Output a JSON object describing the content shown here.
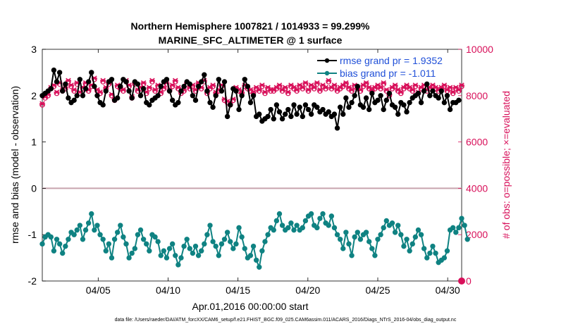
{
  "chart_data": {
    "type": "line",
    "title": "Northern Hemisphere 1007821 / 1014933 = 99.299%",
    "subtitle": "MARINE_SFC_ALTIMETER @ 1 surface",
    "xlabel": "Apr.01,2016 00:00:00 start",
    "ylabel_left": "rmse and bias (model - observation)",
    "ylabel_right": "# of obs: o=possible; ×=evaluated",
    "x_ticks": [
      "04/05",
      "04/10",
      "04/15",
      "04/20",
      "04/25",
      "04/30"
    ],
    "x_tick_days": [
      5,
      10,
      15,
      20,
      25,
      30
    ],
    "xlim": [
      1,
      31
    ],
    "ylim_left": [
      -2,
      3
    ],
    "ylim_right": [
      0,
      10000
    ],
    "y_ticks_left": [
      "-2",
      "-1",
      "0",
      "1",
      "2",
      "3"
    ],
    "y_ticks_right": [
      "0",
      "2000",
      "4000",
      "6000",
      "8000",
      "10000"
    ],
    "zero_line": 0,
    "legend_position": "top-right",
    "colors": {
      "rmse": "#000000",
      "bias": "#0f8282",
      "obs": "#d8105a",
      "zero": "#c8a4ae"
    },
    "series": [
      {
        "name": "rmse grand pr = 1.9352",
        "key": "rmse",
        "marker": "circle",
        "values": [
          2.0,
          2.05,
          2.1,
          2.15,
          2.55,
          2.3,
          2.5,
          2.1,
          2.25,
          1.95,
          1.85,
          1.9,
          2.0,
          2.35,
          2.0,
          2.15,
          2.3,
          2.5,
          2.2,
          2.0,
          1.85,
          1.8,
          2.1,
          2.3,
          2.35,
          1.9,
          1.95,
          2.2,
          2.35,
          2.3,
          2.1,
          1.95,
          2.3,
          2.25,
          2.0,
          2.15,
          1.85,
          1.8,
          1.9,
          1.95,
          2.0,
          2.2,
          2.3,
          2.35,
          2.1,
          1.9,
          1.8,
          1.85,
          2.1,
          2.2,
          2.3,
          2.25,
          2.0,
          1.9,
          2.2,
          2.3,
          2.45,
          2.1,
          1.85,
          1.75,
          2.0,
          2.35,
          2.1,
          2.3,
          1.55,
          1.8,
          2.15,
          2.1,
          1.7,
          2.0,
          2.35,
          2.2,
          1.85,
          2.0,
          1.55,
          1.6,
          1.45,
          1.5,
          1.55,
          1.7,
          1.5,
          1.8,
          1.65,
          1.5,
          1.6,
          1.7,
          1.55,
          1.8,
          1.6,
          1.75,
          1.55,
          1.8,
          1.7,
          1.6,
          1.8,
          1.75,
          1.65,
          1.7,
          1.6,
          1.65,
          1.55,
          1.6,
          1.3,
          1.75,
          1.6,
          1.95,
          1.75,
          1.85,
          2.0,
          2.2,
          1.8,
          1.75,
          1.95,
          1.7,
          2.05,
          1.85,
          1.9,
          2.0,
          1.7,
          1.9,
          2.05,
          1.8,
          1.75,
          1.6,
          1.85,
          1.8,
          1.65,
          1.85,
          1.95,
          2.0,
          2.05,
          1.85,
          2.1,
          2.25,
          2.0,
          2.1,
          2.0,
          1.95,
          2.1,
          1.85,
          2.0,
          1.7,
          1.85,
          1.85,
          1.9
        ]
      },
      {
        "name": "bias grand pr = -1.011",
        "key": "bias",
        "marker": "circle",
        "values": [
          -1.2,
          -1.05,
          -1.0,
          -1.05,
          -1.35,
          -1.1,
          -1.2,
          -1.4,
          -1.25,
          -1.1,
          -0.95,
          -1.0,
          -0.9,
          -0.8,
          -1.1,
          -0.9,
          -0.75,
          -0.55,
          -0.9,
          -0.8,
          -1.0,
          -1.1,
          -1.35,
          -1.2,
          -1.5,
          -1.1,
          -0.95,
          -0.8,
          -1.05,
          -1.2,
          -1.5,
          -1.4,
          -1.3,
          -1.0,
          -0.9,
          -1.1,
          -1.2,
          -1.35,
          -1.0,
          -1.05,
          -1.15,
          -1.45,
          -1.35,
          -1.5,
          -1.3,
          -1.2,
          -1.45,
          -1.65,
          -1.5,
          -1.25,
          -1.1,
          -1.3,
          -1.4,
          -1.25,
          -1.45,
          -1.35,
          -1.2,
          -1.0,
          -0.8,
          -1.15,
          -1.25,
          -1.45,
          -1.2,
          -1.1,
          -0.95,
          -1.15,
          -1.3,
          -1.2,
          -0.85,
          -1.05,
          -1.3,
          -1.5,
          -1.45,
          -1.25,
          -1.55,
          -1.7,
          -1.35,
          -1.15,
          -1.0,
          -0.85,
          -0.9,
          -0.7,
          -0.55,
          -0.8,
          -0.9,
          -0.85,
          -0.75,
          -0.9,
          -0.8,
          -0.9,
          -0.85,
          -0.7,
          -0.6,
          -0.55,
          -0.8,
          -0.85,
          -0.65,
          -0.55,
          -0.75,
          -0.8,
          -0.6,
          -0.85,
          -1.0,
          -1.1,
          -1.3,
          -0.95,
          -1.2,
          -1.45,
          -1.05,
          -0.95,
          -1.1,
          -1.0,
          -0.95,
          -1.15,
          -1.3,
          -1.45,
          -1.1,
          -1.0,
          -0.85,
          -0.7,
          -0.8,
          -0.75,
          -0.95,
          -0.8,
          -1.0,
          -1.25,
          -1.1,
          -1.35,
          -1.2,
          -1.05,
          -0.9,
          -1.0,
          -1.3,
          -1.5,
          -1.4,
          -1.25,
          -1.4,
          -1.6,
          -1.55,
          -1.5,
          -1.35,
          -0.9,
          -0.85,
          -0.95,
          -0.85,
          -0.65,
          -0.8,
          -1.1
        ]
      },
      {
        "name": "# of obs possible",
        "key": "obs_possible",
        "axis": "right",
        "marker": "o",
        "values": [
          7600,
          7900,
          8000,
          8300,
          8400,
          8100,
          8500,
          8200,
          8300,
          8600,
          8400,
          8200,
          8500,
          8100,
          8300,
          8500,
          8200,
          8400,
          8700,
          8200,
          8100,
          8600,
          8300,
          8500,
          8000,
          7800,
          8400,
          8300,
          8200,
          8600,
          8400,
          7900,
          8500,
          8200,
          8300,
          8500,
          8100,
          8300,
          8600,
          8200,
          8400,
          8100,
          8300,
          8500,
          8200,
          8400,
          8600,
          8300,
          8100,
          8200,
          8500,
          8300,
          8400,
          8200,
          8500,
          8300,
          8600,
          8100,
          8300,
          8400,
          8100,
          8200,
          8400,
          7800,
          7700,
          7600,
          7800,
          8300,
          8200,
          8100,
          8400,
          8300,
          8200,
          8100,
          8300,
          8200,
          8400,
          8100,
          8300,
          8200,
          8200,
          8300,
          8400,
          8200,
          8300,
          8100,
          8400,
          8300,
          8200,
          8400,
          8300,
          8500,
          8200,
          8400,
          8300,
          8500,
          8200,
          8400,
          8300,
          8600,
          8300,
          8400,
          8200,
          8300,
          8400,
          8500,
          8300,
          8200,
          8400,
          8300,
          8200,
          8400,
          8500,
          8300,
          8200,
          8300,
          8400,
          8300,
          8500,
          8200,
          8000,
          8300,
          8400,
          8200,
          8100,
          8300,
          8400,
          8300,
          8200,
          8400,
          8100,
          8300,
          8400,
          8200,
          8300,
          8400,
          8300,
          8200,
          8300,
          8400,
          8200,
          8300,
          8100,
          8300,
          8200,
          8400
        ]
      },
      {
        "name": "# of obs evaluated",
        "key": "obs_evaluated",
        "axis": "right",
        "marker": "x",
        "values": [
          7650,
          7950,
          8050,
          8350,
          8450,
          8150,
          8550,
          8250,
          8350,
          8650,
          8450,
          8250,
          8550,
          8150,
          8350,
          8550,
          8250,
          8450,
          8750,
          8250,
          8150,
          8650,
          8350,
          8550,
          8050,
          7850,
          8450,
          8350,
          8250,
          8650,
          8450,
          7950,
          8550,
          8250,
          8350,
          8550,
          8150,
          8350,
          8650,
          8250,
          8450,
          8150,
          8350,
          8550,
          8250,
          8450,
          8650,
          8350,
          8150,
          8250,
          8550,
          8350,
          8450,
          8250,
          8550,
          8350,
          8650,
          8150,
          8350,
          8450,
          8150,
          8250,
          8450,
          7850,
          7750,
          7650,
          7850,
          8350,
          8250,
          8150,
          8450,
          8350,
          8250,
          8150,
          8350,
          8250,
          8450,
          8150,
          8350,
          8250,
          8250,
          8350,
          8450,
          8250,
          8350,
          8150,
          8450,
          8350,
          8250,
          8450,
          8350,
          8550,
          8250,
          8450,
          8350,
          8550,
          8250,
          8450,
          8350,
          8650,
          8350,
          8450,
          8250,
          8350,
          8450,
          8550,
          8350,
          8250,
          8450,
          8350,
          8250,
          8450,
          8550,
          8350,
          8250,
          8350,
          8450,
          8350,
          8550,
          8250,
          8050,
          8350,
          8450,
          8250,
          8150,
          8350,
          8450,
          8350,
          8250,
          8450,
          8150,
          8350,
          8450,
          8250,
          8350,
          8450,
          8350,
          8250,
          8350,
          8450,
          8250,
          8350,
          8150,
          8350,
          8250,
          8450
        ]
      }
    ],
    "corner_marker_value": 0
  },
  "footer": "data file: /Users/raeder/DAI/ATM_forcXX/CAM6_setup/f.e21.FHIST_BGC.f09_025.CAM6assim.011/ACARS_2016/Diags_NTrS_2016-04/obs_diag_output.nc"
}
